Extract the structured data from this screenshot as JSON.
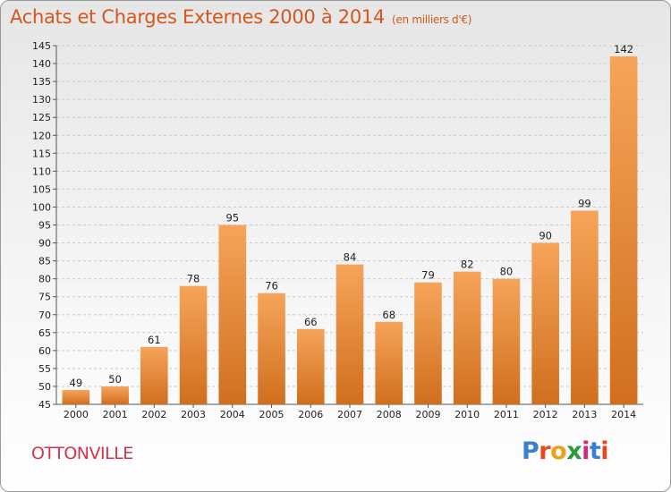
{
  "header": {
    "title": "Achats et Charges Externes 2000 à 2014",
    "unit": "(en milliers d'€)"
  },
  "commune": "OTTONVILLE",
  "logo": {
    "text": "Proxiti",
    "colors": [
      "#3b7fd1",
      "#e8461c",
      "#e8a21c",
      "#2c9a3a",
      "#d02b7a",
      "#3b7fd1",
      "#e8461c"
    ]
  },
  "colors": {
    "bar_light": "#f6a45a",
    "bar_dark": "#d06f1e",
    "title": "#d4581d",
    "commune": "#d4354a"
  },
  "chart_data": {
    "type": "bar",
    "title": "Achats et Charges Externes 2000 à 2014",
    "subtitle": "(en milliers d'€)",
    "categories": [
      "2000",
      "2001",
      "2002",
      "2003",
      "2004",
      "2005",
      "2006",
      "2007",
      "2008",
      "2009",
      "2010",
      "2011",
      "2012",
      "2013",
      "2014"
    ],
    "values": [
      49,
      50,
      61,
      78,
      95,
      76,
      66,
      84,
      68,
      79,
      82,
      80,
      90,
      99,
      142
    ],
    "ylim": [
      45,
      145
    ],
    "yticks": [
      45,
      50,
      55,
      60,
      65,
      70,
      75,
      80,
      85,
      90,
      95,
      100,
      105,
      110,
      115,
      120,
      125,
      130,
      135,
      140,
      145
    ],
    "grid": true
  }
}
